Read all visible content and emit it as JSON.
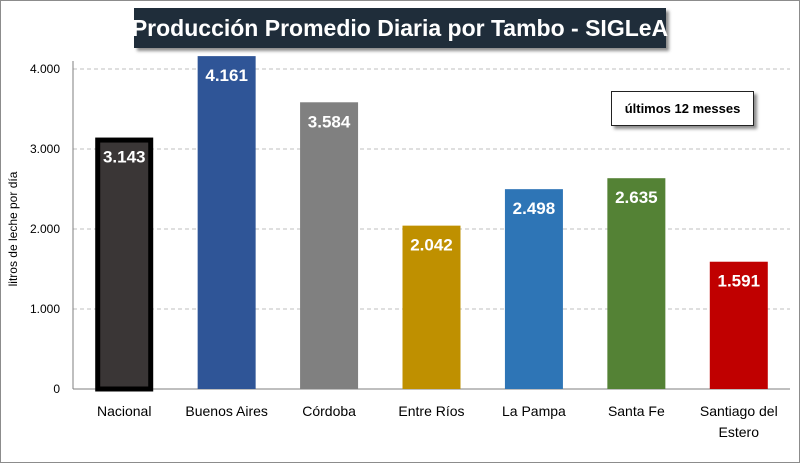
{
  "chart_data": {
    "type": "bar",
    "title": "Producción Promedio Diaria por Tambo - SIGLeA",
    "annotation": "últimos 12 messes",
    "ylabel": "litros de leche por día",
    "xlabel": "",
    "ylim": [
      0,
      4000
    ],
    "yticks": [
      "0",
      "1.000",
      "2.000",
      "3.000",
      "4.000"
    ],
    "ytick_values": [
      0,
      1000,
      2000,
      3000,
      4000
    ],
    "grid": true,
    "categories": [
      "Nacional",
      "Buenos Aires",
      "Córdoba",
      "Entre Ríos",
      "La Pampa",
      "Santa Fe",
      "Santiago del Estero"
    ],
    "category_lines": [
      [
        "Nacional"
      ],
      [
        "Buenos Aires"
      ],
      [
        "Córdoba"
      ],
      [
        "Entre Ríos"
      ],
      [
        "La Pampa"
      ],
      [
        "Santa Fe"
      ],
      [
        "Santiago del",
        "Estero"
      ]
    ],
    "values": [
      3143,
      4161,
      3584,
      2042,
      2498,
      2635,
      1591
    ],
    "value_labels": [
      "3.143",
      "4.161",
      "3.584",
      "2.042",
      "2.498",
      "2.635",
      "1.591"
    ],
    "colors": [
      "#3a3636",
      "#2f5597",
      "#808080",
      "#bf9000",
      "#2e75b6",
      "#548235",
      "#c00000"
    ],
    "highlight_border_color": "#000000"
  }
}
